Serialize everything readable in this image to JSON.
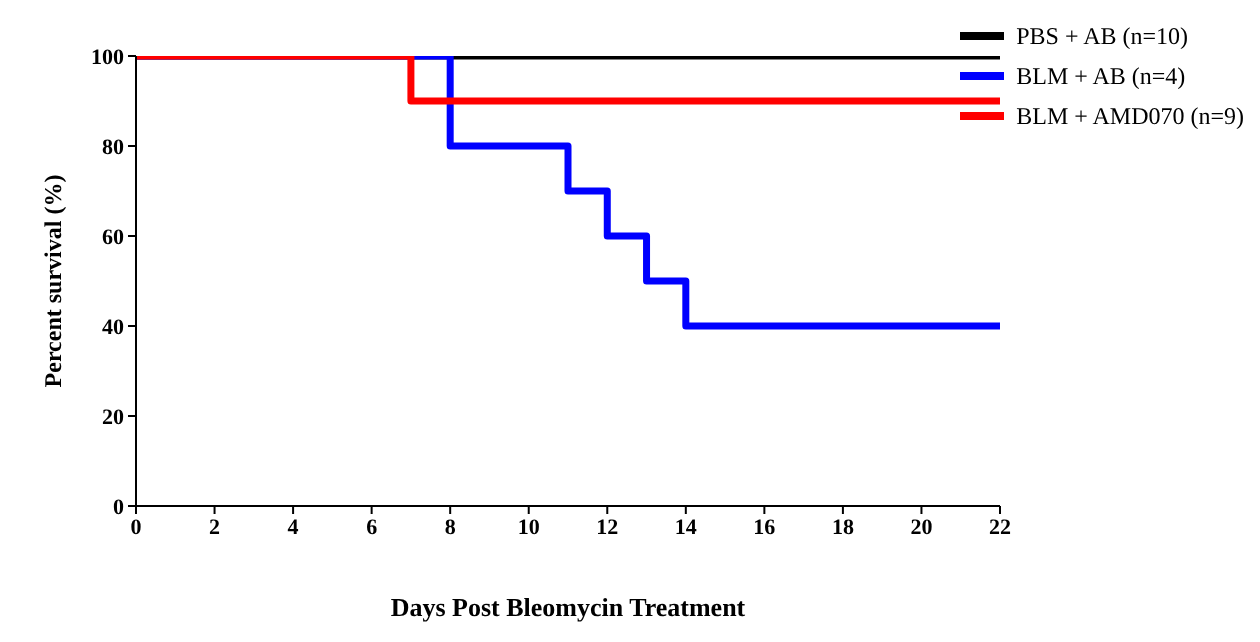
{
  "chart_data": {
    "type": "step",
    "xlabel": "Days Post Bleomycin Treatment",
    "ylabel": "Percent survival (%)",
    "xlim": [
      0,
      22
    ],
    "xticks": [
      0,
      2,
      4,
      6,
      8,
      10,
      12,
      14,
      16,
      18,
      20,
      22
    ],
    "ylim": [
      0,
      100
    ],
    "yticks": [
      0,
      20,
      40,
      60,
      80,
      100
    ],
    "grid": false,
    "legend": "top right",
    "marker": "none",
    "line_style": "solid",
    "series": [
      {
        "name": "PBS + AB (n=10)",
        "color": "#000000",
        "x": [
          0,
          22
        ],
        "values": [
          100,
          100
        ]
      },
      {
        "name": "BLM + AB (n=4)",
        "color": "#0000ff",
        "x": [
          0,
          8,
          11,
          12,
          13,
          14,
          22
        ],
        "values": [
          100,
          80,
          70,
          60,
          50,
          40,
          40
        ]
      },
      {
        "name": "BLM + AMD070 (n=9)",
        "color": "#ff0000",
        "x": [
          0,
          7,
          22
        ],
        "values": [
          100,
          90,
          90
        ]
      }
    ]
  }
}
